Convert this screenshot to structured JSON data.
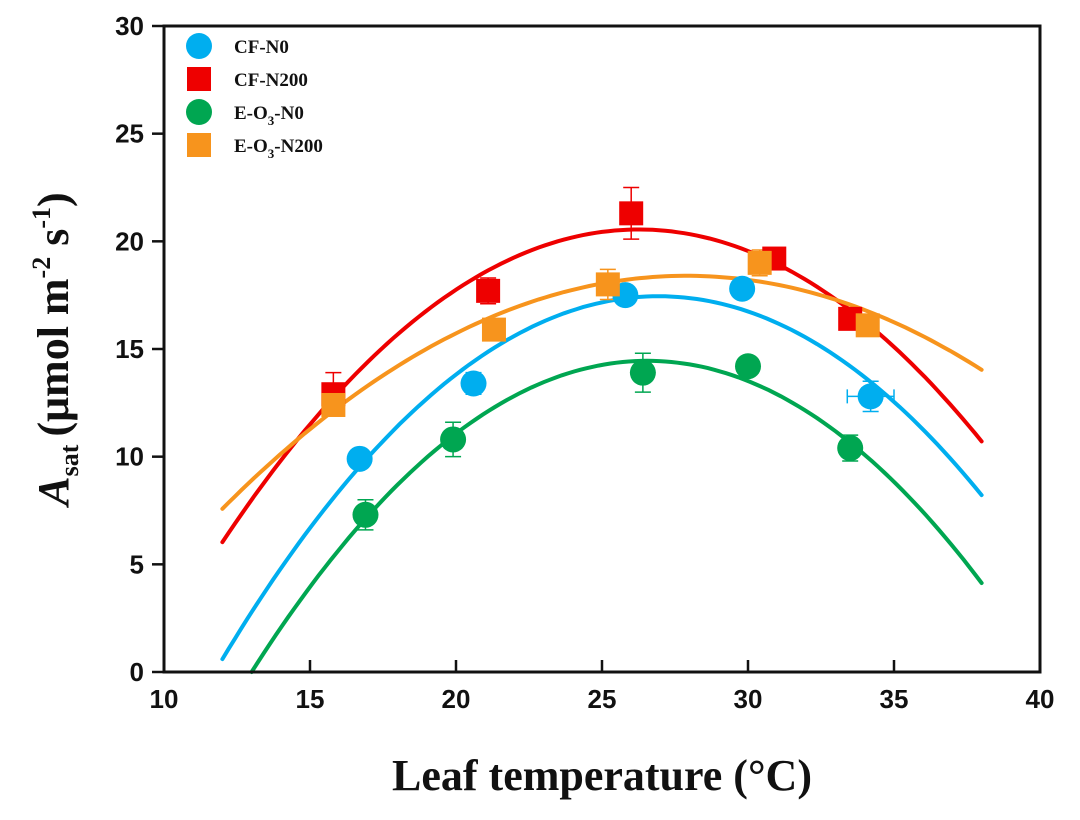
{
  "chart_data": {
    "type": "scatter",
    "title": "",
    "xlabel": "Leaf temperature (°C)",
    "ylabel": {
      "symbol": "A",
      "subscript": "sat",
      "units": "(μmol m-2 s-1)",
      "units_parts": [
        "(μmol m",
        "-2",
        " s",
        "-1",
        ")"
      ]
    },
    "xlim": [
      10,
      40
    ],
    "ylim": [
      0,
      30
    ],
    "xticks": [
      10,
      15,
      20,
      25,
      30,
      35,
      40
    ],
    "yticks": [
      0,
      5,
      10,
      15,
      20,
      25,
      30
    ],
    "grid": false,
    "legend_position": "top-left",
    "series": [
      {
        "name": "CF-N0",
        "legend_parts": [
          "CF-N0"
        ],
        "marker": "circle",
        "color": "#00AEEF",
        "points": [
          {
            "x": 16.7,
            "y": 9.9,
            "yerr": 0.3
          },
          {
            "x": 20.6,
            "y": 13.4,
            "yerr": 0.5
          },
          {
            "x": 25.8,
            "y": 17.5,
            "yerr": 0.3
          },
          {
            "x": 29.8,
            "y": 17.8,
            "yerr": 0.3
          },
          {
            "x": 34.2,
            "y": 12.8,
            "yerr": 0.7,
            "xerr": 0.8
          }
        ],
        "fit": {
          "type": "quadratic",
          "vertex_x": 26.94,
          "vertex_y": 17.45,
          "curvature": -0.0755,
          "x_range": [
            12,
            38
          ]
        }
      },
      {
        "name": "CF-N200",
        "legend_parts": [
          "CF-N200"
        ],
        "marker": "square",
        "color": "#EE0000",
        "points": [
          {
            "x": 15.8,
            "y": 12.9,
            "yerr": 1.0
          },
          {
            "x": 21.1,
            "y": 17.7,
            "yerr": 0.6
          },
          {
            "x": 26.0,
            "y": 21.3,
            "yerr": 1.2
          },
          {
            "x": 30.9,
            "y": 19.2,
            "yerr": 0.3
          },
          {
            "x": 33.5,
            "y": 16.4,
            "yerr": 0.3
          }
        ],
        "fit": {
          "type": "quadratic",
          "vertex_x": 26.26,
          "vertex_y": 20.55,
          "curvature": -0.0714,
          "x_range": [
            12,
            38
          ]
        }
      },
      {
        "name": "E-O3-N0",
        "legend_parts": [
          "E-O",
          "3",
          "-N0"
        ],
        "marker": "circle",
        "color": "#00A651",
        "points": [
          {
            "x": 16.9,
            "y": 7.3,
            "yerr": 0.7
          },
          {
            "x": 19.9,
            "y": 10.8,
            "yerr": 0.8
          },
          {
            "x": 26.4,
            "y": 13.9,
            "yerr": 0.9
          },
          {
            "x": 30.0,
            "y": 14.2,
            "yerr": 0.3
          },
          {
            "x": 33.5,
            "y": 10.4,
            "yerr": 0.6
          }
        ],
        "fit": {
          "type": "quadratic",
          "vertex_x": 26.55,
          "vertex_y": 14.45,
          "curvature": -0.0787,
          "x_range": [
            13,
            38
          ]
        }
      },
      {
        "name": "E-O3-N200",
        "legend_parts": [
          "E-O",
          "3",
          "-N200"
        ],
        "marker": "square",
        "color": "#F7941D",
        "points": [
          {
            "x": 15.8,
            "y": 12.4,
            "yerr": 0.3
          },
          {
            "x": 21.3,
            "y": 15.9,
            "yerr": 0.3
          },
          {
            "x": 25.2,
            "y": 18.0,
            "yerr": 0.7
          },
          {
            "x": 30.4,
            "y": 19.0,
            "yerr": 0.6
          },
          {
            "x": 34.1,
            "y": 16.1,
            "yerr": 0.3
          }
        ],
        "fit": {
          "type": "quadratic",
          "vertex_x": 27.9,
          "vertex_y": 18.4,
          "curvature": -0.0428,
          "x_range": [
            12,
            38
          ]
        }
      }
    ]
  }
}
